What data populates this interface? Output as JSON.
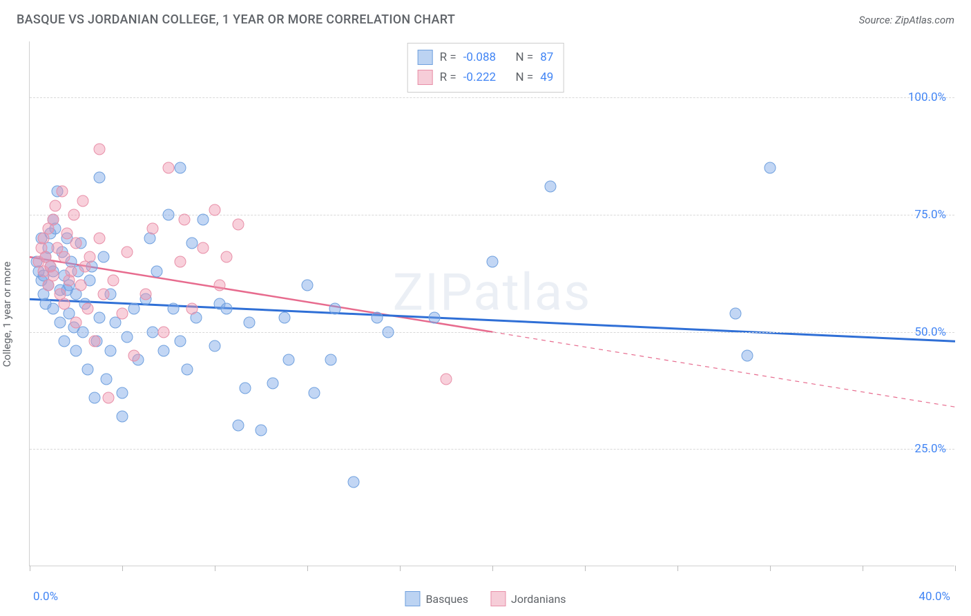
{
  "header": {
    "title": "BASQUE VS JORDANIAN COLLEGE, 1 YEAR OR MORE CORRELATION CHART",
    "source": "Source: ZipAtlas.com"
  },
  "watermark": "ZIPatlas",
  "chart": {
    "type": "scatter",
    "ylabel": "College, 1 year or more",
    "xlim": [
      0,
      40
    ],
    "ylim": [
      0,
      112
    ],
    "xtick_positions": [
      0,
      4,
      8,
      12,
      16,
      20,
      24,
      28,
      32,
      36,
      40
    ],
    "xtick_labels_shown": {
      "min": "0.0%",
      "max": "40.0%"
    },
    "ytick_positions": [
      25,
      50,
      75,
      100
    ],
    "ytick_labels": [
      "25.0%",
      "50.0%",
      "75.0%",
      "100.0%"
    ],
    "background_color": "#ffffff",
    "grid_color": "#d8d8d8",
    "axis_color": "#d0d0d0",
    "marker_size": 17,
    "series": [
      {
        "name": "Basques",
        "color_fill": "rgba(120,165,230,0.45)",
        "color_stroke": "#6fa0de",
        "swatch_fill": "#bcd3f2",
        "swatch_stroke": "#6fa0de",
        "line_color": "#2f6fd6",
        "line_width": 3,
        "R": "-0.088",
        "N": "87",
        "regression": {
          "x1": 0,
          "y1": 57,
          "x2": 40,
          "y2": 48
        },
        "points": [
          [
            0.3,
            65
          ],
          [
            0.4,
            63
          ],
          [
            0.5,
            61
          ],
          [
            0.5,
            70
          ],
          [
            0.6,
            62
          ],
          [
            0.6,
            58
          ],
          [
            0.7,
            66
          ],
          [
            0.7,
            56
          ],
          [
            0.8,
            68
          ],
          [
            0.8,
            60
          ],
          [
            0.9,
            64
          ],
          [
            0.9,
            71
          ],
          [
            1.0,
            63
          ],
          [
            1.0,
            55
          ],
          [
            1.0,
            74
          ],
          [
            1.2,
            80
          ],
          [
            1.3,
            52
          ],
          [
            1.3,
            59
          ],
          [
            1.4,
            67
          ],
          [
            1.5,
            62
          ],
          [
            1.5,
            48
          ],
          [
            1.6,
            70
          ],
          [
            1.7,
            54
          ],
          [
            1.7,
            60
          ],
          [
            1.8,
            65
          ],
          [
            1.9,
            51
          ],
          [
            2.0,
            46
          ],
          [
            2.0,
            58
          ],
          [
            2.1,
            63
          ],
          [
            2.2,
            69
          ],
          [
            2.3,
            50
          ],
          [
            2.4,
            56
          ],
          [
            2.5,
            42
          ],
          [
            2.6,
            61
          ],
          [
            2.8,
            36
          ],
          [
            2.9,
            48
          ],
          [
            3.0,
            53
          ],
          [
            3.0,
            83
          ],
          [
            3.2,
            66
          ],
          [
            3.3,
            40
          ],
          [
            3.5,
            46
          ],
          [
            3.5,
            58
          ],
          [
            3.7,
            52
          ],
          [
            4.0,
            32
          ],
          [
            4.0,
            37
          ],
          [
            4.2,
            49
          ],
          [
            4.5,
            55
          ],
          [
            4.7,
            44
          ],
          [
            5.0,
            57
          ],
          [
            5.2,
            70
          ],
          [
            5.3,
            50
          ],
          [
            5.5,
            63
          ],
          [
            5.8,
            46
          ],
          [
            6.0,
            75
          ],
          [
            6.2,
            55
          ],
          [
            6.5,
            48
          ],
          [
            6.5,
            85
          ],
          [
            6.8,
            42
          ],
          [
            7.0,
            69
          ],
          [
            7.2,
            53
          ],
          [
            7.5,
            74
          ],
          [
            8.0,
            47
          ],
          [
            8.2,
            56
          ],
          [
            8.5,
            55
          ],
          [
            9.0,
            30
          ],
          [
            9.3,
            38
          ],
          [
            9.5,
            52
          ],
          [
            10.0,
            29
          ],
          [
            10.5,
            39
          ],
          [
            11.0,
            53
          ],
          [
            11.2,
            44
          ],
          [
            12.0,
            60
          ],
          [
            12.3,
            37
          ],
          [
            13.0,
            44
          ],
          [
            13.2,
            55
          ],
          [
            14.0,
            18
          ],
          [
            15.0,
            53
          ],
          [
            15.5,
            50
          ],
          [
            17.5,
            53
          ],
          [
            20.0,
            65
          ],
          [
            22.5,
            81
          ],
          [
            30.5,
            54
          ],
          [
            31.0,
            45
          ],
          [
            32.0,
            85
          ],
          [
            1.1,
            72
          ],
          [
            1.6,
            59
          ],
          [
            2.7,
            64
          ]
        ]
      },
      {
        "name": "Jordanians",
        "color_fill": "rgba(240,150,175,0.45)",
        "color_stroke": "#e88fa8",
        "swatch_fill": "#f6cdd8",
        "swatch_stroke": "#e88fa8",
        "line_color": "#e76b8e",
        "line_width": 2.5,
        "R": "-0.222",
        "N": "49",
        "regression_solid": {
          "x1": 0,
          "y1": 66,
          "x2": 20,
          "y2": 50
        },
        "regression_dashed": {
          "x1": 20,
          "y1": 50,
          "x2": 40,
          "y2": 34
        },
        "points": [
          [
            0.4,
            65
          ],
          [
            0.5,
            68
          ],
          [
            0.6,
            63
          ],
          [
            0.6,
            70
          ],
          [
            0.7,
            66
          ],
          [
            0.8,
            60
          ],
          [
            0.8,
            72
          ],
          [
            0.9,
            64
          ],
          [
            1.0,
            74
          ],
          [
            1.0,
            62
          ],
          [
            1.1,
            77
          ],
          [
            1.2,
            68
          ],
          [
            1.3,
            58
          ],
          [
            1.4,
            80
          ],
          [
            1.5,
            66
          ],
          [
            1.5,
            56
          ],
          [
            1.6,
            71
          ],
          [
            1.8,
            63
          ],
          [
            1.9,
            75
          ],
          [
            2.0,
            52
          ],
          [
            2.0,
            69
          ],
          [
            2.2,
            60
          ],
          [
            2.3,
            78
          ],
          [
            2.5,
            55
          ],
          [
            2.6,
            66
          ],
          [
            2.8,
            48
          ],
          [
            3.0,
            70
          ],
          [
            3.0,
            89
          ],
          [
            3.4,
            36
          ],
          [
            3.6,
            61
          ],
          [
            4.0,
            54
          ],
          [
            4.2,
            67
          ],
          [
            4.5,
            45
          ],
          [
            5.0,
            58
          ],
          [
            5.3,
            72
          ],
          [
            5.8,
            50
          ],
          [
            6.0,
            85
          ],
          [
            6.5,
            65
          ],
          [
            6.7,
            74
          ],
          [
            7.0,
            55
          ],
          [
            7.5,
            68
          ],
          [
            8.0,
            76
          ],
          [
            8.2,
            60
          ],
          [
            8.5,
            66
          ],
          [
            9.0,
            73
          ],
          [
            18.0,
            40
          ],
          [
            1.7,
            61
          ],
          [
            2.4,
            64
          ],
          [
            3.2,
            58
          ]
        ]
      }
    ]
  },
  "footer_legend": [
    {
      "label": "Basques",
      "fill": "#bcd3f2",
      "stroke": "#6fa0de"
    },
    {
      "label": "Jordanians",
      "fill": "#f6cdd8",
      "stroke": "#e88fa8"
    }
  ]
}
